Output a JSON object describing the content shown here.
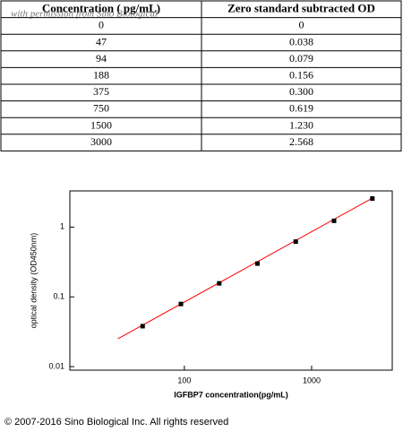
{
  "table": {
    "header": [
      "Concentration ( pg/mL)",
      "Zero standard subtracted OD"
    ],
    "rows": [
      [
        "0",
        "0"
      ],
      [
        "47",
        "0.038"
      ],
      [
        "94",
        "0.079"
      ],
      [
        "188",
        "0.156"
      ],
      [
        "375",
        "0.300"
      ],
      [
        "750",
        "0.619"
      ],
      [
        "1500",
        "1.230"
      ],
      [
        "3000",
        "2.568"
      ]
    ],
    "watermark": "with permission from Sino Biological"
  },
  "chart_data": {
    "type": "scatter",
    "x_label": "IGFBP7  concentration(pg/mL)",
    "y_label": "optical density (OD450nm)",
    "x": [
      47,
      94,
      188,
      375,
      750,
      1500,
      3000
    ],
    "values": [
      0.038,
      0.079,
      0.156,
      0.3,
      0.619,
      1.23,
      2.568
    ],
    "color": "#000000",
    "fit_line": {
      "x": [
        30,
        3000
      ],
      "y": [
        0.025,
        2.6
      ],
      "color": "#ff0000"
    },
    "xscale": "log",
    "yscale": "log",
    "xlim": [
      12.6,
      4300
    ],
    "ylim": [
      0.0089,
      3.3
    ],
    "xticks": [
      100,
      1000
    ],
    "yticks": [
      0.01,
      0.1,
      1
    ]
  },
  "copyright": "© 2007-2016 Sino Biological Inc. All rights reserved"
}
